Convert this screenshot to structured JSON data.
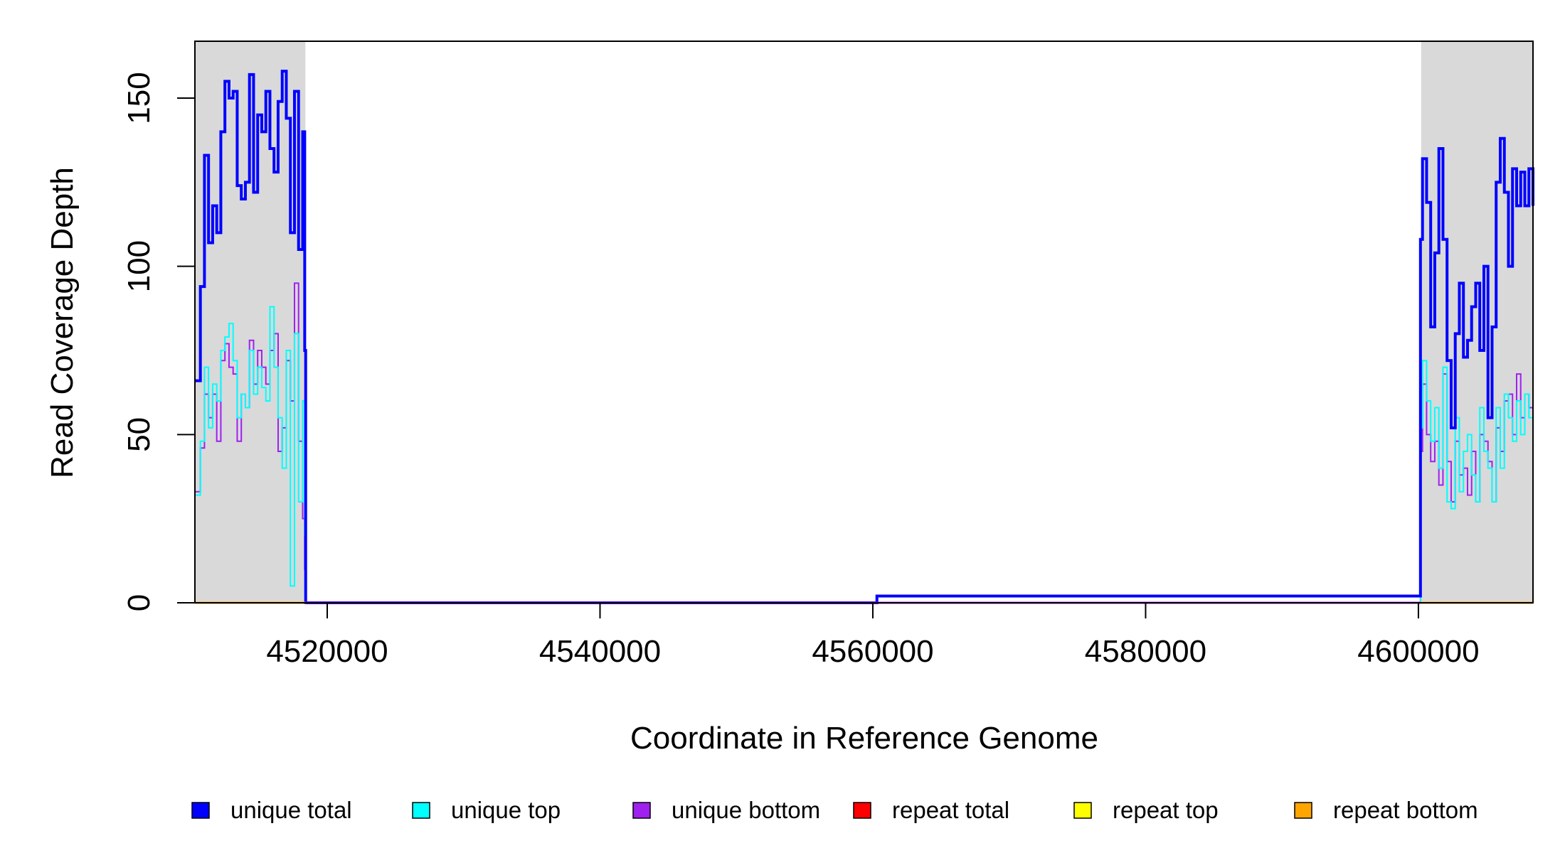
{
  "chart_data": {
    "type": "line",
    "title": "",
    "xlabel": "Coordinate in Reference Genome",
    "ylabel": "Read Coverage Depth",
    "xlim": [
      4510300,
      4608400
    ],
    "ylim": [
      0,
      160
    ],
    "x_ticks": [
      4520000,
      4540000,
      4560000,
      4580000,
      4600000
    ],
    "x_tick_labels": [
      "4520000",
      "4540000",
      "4560000",
      "4580000",
      "4600000"
    ],
    "y_ticks": [
      0,
      50,
      100,
      150
    ],
    "y_tick_labels": [
      "0",
      "50",
      "100",
      "150"
    ],
    "shaded_regions": [
      [
        4510300,
        4518400
      ],
      [
        4600200,
        4608400
      ]
    ],
    "shade_color": "#d9d9d9",
    "grid": false,
    "legend_position": "bottom",
    "series": [
      {
        "name": "unique total",
        "color": "#0000ff",
        "x": [
          4510300,
          4510700,
          4511000,
          4511300,
          4511600,
          4511900,
          4512200,
          4512500,
          4512800,
          4513100,
          4513400,
          4513700,
          4514000,
          4514300,
          4514600,
          4514900,
          4515200,
          4515500,
          4515800,
          4516100,
          4516400,
          4516700,
          4517000,
          4517300,
          4517600,
          4517900,
          4518200,
          4518350,
          4518420,
          4560100,
          4560300,
          4600150,
          4600300,
          4600600,
          4600900,
          4601200,
          4601500,
          4601800,
          4602100,
          4602400,
          4602700,
          4603000,
          4603300,
          4603600,
          4603900,
          4604200,
          4604500,
          4604800,
          4605100,
          4605400,
          4605700,
          4606000,
          4606300,
          4606600,
          4606900,
          4607200,
          4607500,
          4607800,
          4608100,
          4608400
        ],
        "values": [
          66,
          94,
          133,
          107,
          118,
          110,
          140,
          155,
          150,
          152,
          124,
          120,
          125,
          157,
          122,
          145,
          140,
          152,
          135,
          128,
          149,
          158,
          144,
          110,
          152,
          105,
          140,
          75,
          0,
          0,
          2,
          108,
          132,
          119,
          82,
          104,
          135,
          108,
          72,
          52,
          80,
          95,
          73,
          78,
          88,
          95,
          75,
          100,
          55,
          82,
          125,
          138,
          122,
          100,
          129,
          118,
          128,
          118,
          129,
          118
        ],
        "stroke_width": 4
      },
      {
        "name": "unique top",
        "color": "#00ffff",
        "x": [
          4510300,
          4510700,
          4511000,
          4511300,
          4511600,
          4511900,
          4512200,
          4512500,
          4512800,
          4513100,
          4513400,
          4513700,
          4514000,
          4514300,
          4514600,
          4514900,
          4515200,
          4515500,
          4515800,
          4516100,
          4516400,
          4516700,
          4517000,
          4517300,
          4517600,
          4517900,
          4518200,
          4518350,
          4518420,
          4600150,
          4600300,
          4600600,
          4600900,
          4601200,
          4601500,
          4601800,
          4602100,
          4602400,
          4602700,
          4603000,
          4603300,
          4603600,
          4603900,
          4604200,
          4604500,
          4604800,
          4605100,
          4605400,
          4605700,
          4606000,
          4606300,
          4606600,
          4606900,
          4607200,
          4607500,
          4607800,
          4608100,
          4608400
        ],
        "values": [
          32,
          48,
          70,
          52,
          65,
          60,
          75,
          79,
          83,
          72,
          55,
          62,
          58,
          75,
          62,
          70,
          64,
          60,
          88,
          70,
          55,
          40,
          75,
          5,
          80,
          30,
          60,
          20,
          0,
          52,
          72,
          60,
          48,
          58,
          40,
          70,
          30,
          28,
          55,
          33,
          45,
          50,
          38,
          30,
          58,
          45,
          40,
          30,
          58,
          40,
          62,
          55,
          48,
          60,
          50,
          62,
          55,
          60
        ],
        "stroke_width": 2
      },
      {
        "name": "unique bottom",
        "color": "#a020f0",
        "x": [
          4510300,
          4510700,
          4511000,
          4511300,
          4511600,
          4511900,
          4512200,
          4512500,
          4512800,
          4513100,
          4513400,
          4513700,
          4514000,
          4514300,
          4514600,
          4514900,
          4515200,
          4515500,
          4515800,
          4516100,
          4516400,
          4516700,
          4517000,
          4517300,
          4517600,
          4517900,
          4518200,
          4518350,
          4518420,
          4600150,
          4600300,
          4600600,
          4600900,
          4601200,
          4601500,
          4601800,
          4602100,
          4602400,
          4602700,
          4603000,
          4603300,
          4603600,
          4603900,
          4604200,
          4604500,
          4604800,
          4605100,
          4605400,
          4605700,
          4606000,
          4606300,
          4606600,
          4606900,
          4607200,
          4607500,
          4607800,
          4608100,
          4608400
        ],
        "values": [
          33,
          46,
          62,
          55,
          62,
          48,
          72,
          77,
          70,
          68,
          48,
          62,
          58,
          78,
          65,
          75,
          70,
          65,
          75,
          80,
          45,
          52,
          72,
          60,
          95,
          48,
          25,
          10,
          0,
          45,
          65,
          50,
          42,
          48,
          35,
          68,
          42,
          30,
          48,
          38,
          40,
          32,
          45,
          30,
          50,
          48,
          42,
          30,
          52,
          45,
          60,
          62,
          50,
          68,
          55,
          62,
          58,
          62
        ],
        "stroke_width": 2
      },
      {
        "name": "repeat total",
        "color": "#ff0000",
        "x": [
          4510300,
          4608400
        ],
        "values": [
          0,
          0
        ],
        "stroke_width": 2
      },
      {
        "name": "repeat top",
        "color": "#ffff00",
        "x": [
          4510300,
          4608400
        ],
        "values": [
          0,
          0
        ],
        "stroke_width": 2
      },
      {
        "name": "repeat bottom",
        "color": "#ffa500",
        "x": [
          4510300,
          4608400
        ],
        "values": [
          0,
          0
        ],
        "stroke_width": 3
      }
    ]
  },
  "legend": {
    "items": [
      {
        "label": "unique total",
        "color": "#0000ff"
      },
      {
        "label": "unique top",
        "color": "#00ffff"
      },
      {
        "label": "unique bottom",
        "color": "#a020f0"
      },
      {
        "label": "repeat total",
        "color": "#ff0000"
      },
      {
        "label": "repeat top",
        "color": "#ffff00"
      },
      {
        "label": "repeat bottom",
        "color": "#ffa500"
      }
    ]
  }
}
